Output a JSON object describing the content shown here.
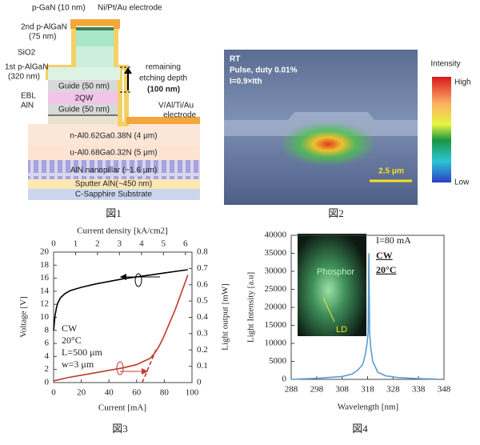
{
  "figure1": {
    "p_gan": "p-GaN (10 nm)",
    "electrode_top": "Ni/Pt/Au electrode",
    "p_algan_2": "2nd p-AlGaN",
    "p_algan_2_thickness": "(75 nm)",
    "sio2": "SiO2",
    "p_algan_1": "1st p-AlGaN",
    "p_algan_1_thickness": "(320 nm)",
    "ebl": "EBL",
    "aln": "AlN",
    "guide_upper": "Guide (50 nm)",
    "qw": "2QW",
    "guide_lower": "Guide (50 nm)",
    "etch_1": "remaining",
    "etch_2": "etching depth",
    "etch_3": "(100 nm)",
    "electrode_n_1": "V/Al/Ti/Au",
    "electrode_n_2": "electrode",
    "n_algan": "n-Al0.62Ga0.38N  (4 μm)",
    "u_algan": "u-Al0.68Ga0.32N  (5 μm)",
    "nanopillar": "AlN nanopillar (~1.6 μm)",
    "sputter": "Sputter AlN(~450 nm)",
    "substrate": "C-Sapphire Substrate",
    "caption": "図1"
  },
  "figure2": {
    "condition": "RT",
    "pulse": "Pulse, duty 0.01%",
    "current": "I=0.9×Ith",
    "scale_bar": "2.5 μm",
    "colorbar_title": "Intensity",
    "colorbar_high": "High",
    "colorbar_low": "Low",
    "caption": "図2"
  },
  "chart_data": [
    {
      "type": "line",
      "caption": "図3",
      "x_label": "Current [mA]",
      "x2_label": "Current density [kA/cm2]",
      "y_label": "Voltage [V]",
      "y2_label": "Light output [mW]",
      "xlim": [
        0,
        100
      ],
      "xticks": [
        0,
        20,
        40,
        60,
        80,
        100
      ],
      "x2lim": [
        0,
        6.3
      ],
      "x2ticks": [
        0,
        1,
        2,
        3,
        4,
        5,
        6
      ],
      "ylim": [
        0,
        20
      ],
      "yticks": [
        0,
        2,
        4,
        6,
        8,
        10,
        12,
        14,
        16,
        18,
        20
      ],
      "y2lim": [
        0,
        0.8
      ],
      "y2ticks": [
        0,
        0.1,
        0.2,
        0.3,
        0.4,
        0.5,
        0.6,
        0.7,
        0.8
      ],
      "annotations": [
        "CW",
        "20°C",
        "L=500 μm",
        "w=3 μm"
      ],
      "series": [
        {
          "color": "#000000",
          "x": [
            0,
            1,
            2,
            3,
            5,
            8,
            12,
            20,
            30,
            40,
            50,
            60,
            70,
            80,
            90,
            97
          ],
          "values": [
            8.0,
            10.2,
            11.4,
            12.2,
            13.0,
            13.6,
            14.1,
            14.6,
            15.1,
            15.5,
            15.9,
            16.2,
            16.5,
            16.8,
            17.1,
            17.3
          ]
        },
        {
          "color": "#c0392b",
          "axis": "y2",
          "x": [
            0,
            10,
            20,
            30,
            40,
            50,
            60,
            65,
            70,
            73,
            76,
            79,
            82,
            85,
            88,
            91,
            94,
            97
          ],
          "values": [
            0.01,
            0.03,
            0.045,
            0.06,
            0.075,
            0.09,
            0.11,
            0.13,
            0.15,
            0.18,
            0.22,
            0.27,
            0.33,
            0.39,
            0.45,
            0.52,
            0.59,
            0.66
          ]
        },
        {
          "color": "#c0392b",
          "axis": "y2",
          "style": "dashed",
          "x": [
            64,
            74
          ],
          "values": [
            0,
            0.2
          ]
        }
      ]
    },
    {
      "type": "line",
      "caption": "図4",
      "x_label": "Wavelength  [nm]",
      "y_label": "Light Intensity [a.u]",
      "xlim": [
        288,
        348
      ],
      "xticks": [
        288,
        298,
        308,
        318,
        328,
        338,
        348
      ],
      "ylim": [
        0,
        40000
      ],
      "yticks": [
        0,
        5000,
        10000,
        15000,
        20000,
        25000,
        30000,
        35000,
        40000
      ],
      "annotations": [
        "I=80 mA",
        "CW",
        "20°C"
      ],
      "inset_labels": [
        "Phosphor",
        "LD"
      ],
      "series": [
        {
          "color": "#5b9bd5",
          "x": [
            288,
            298,
            308,
            312,
            314,
            316,
            317,
            317.8,
            318.2,
            318.5,
            318.8,
            319.2,
            320,
            322,
            325,
            330,
            338,
            345
          ],
          "values": [
            0,
            300,
            800,
            1500,
            2500,
            4000,
            6500,
            10000,
            13000,
            35000,
            13000,
            9000,
            5000,
            2000,
            1000,
            500,
            200,
            100
          ]
        }
      ]
    }
  ]
}
